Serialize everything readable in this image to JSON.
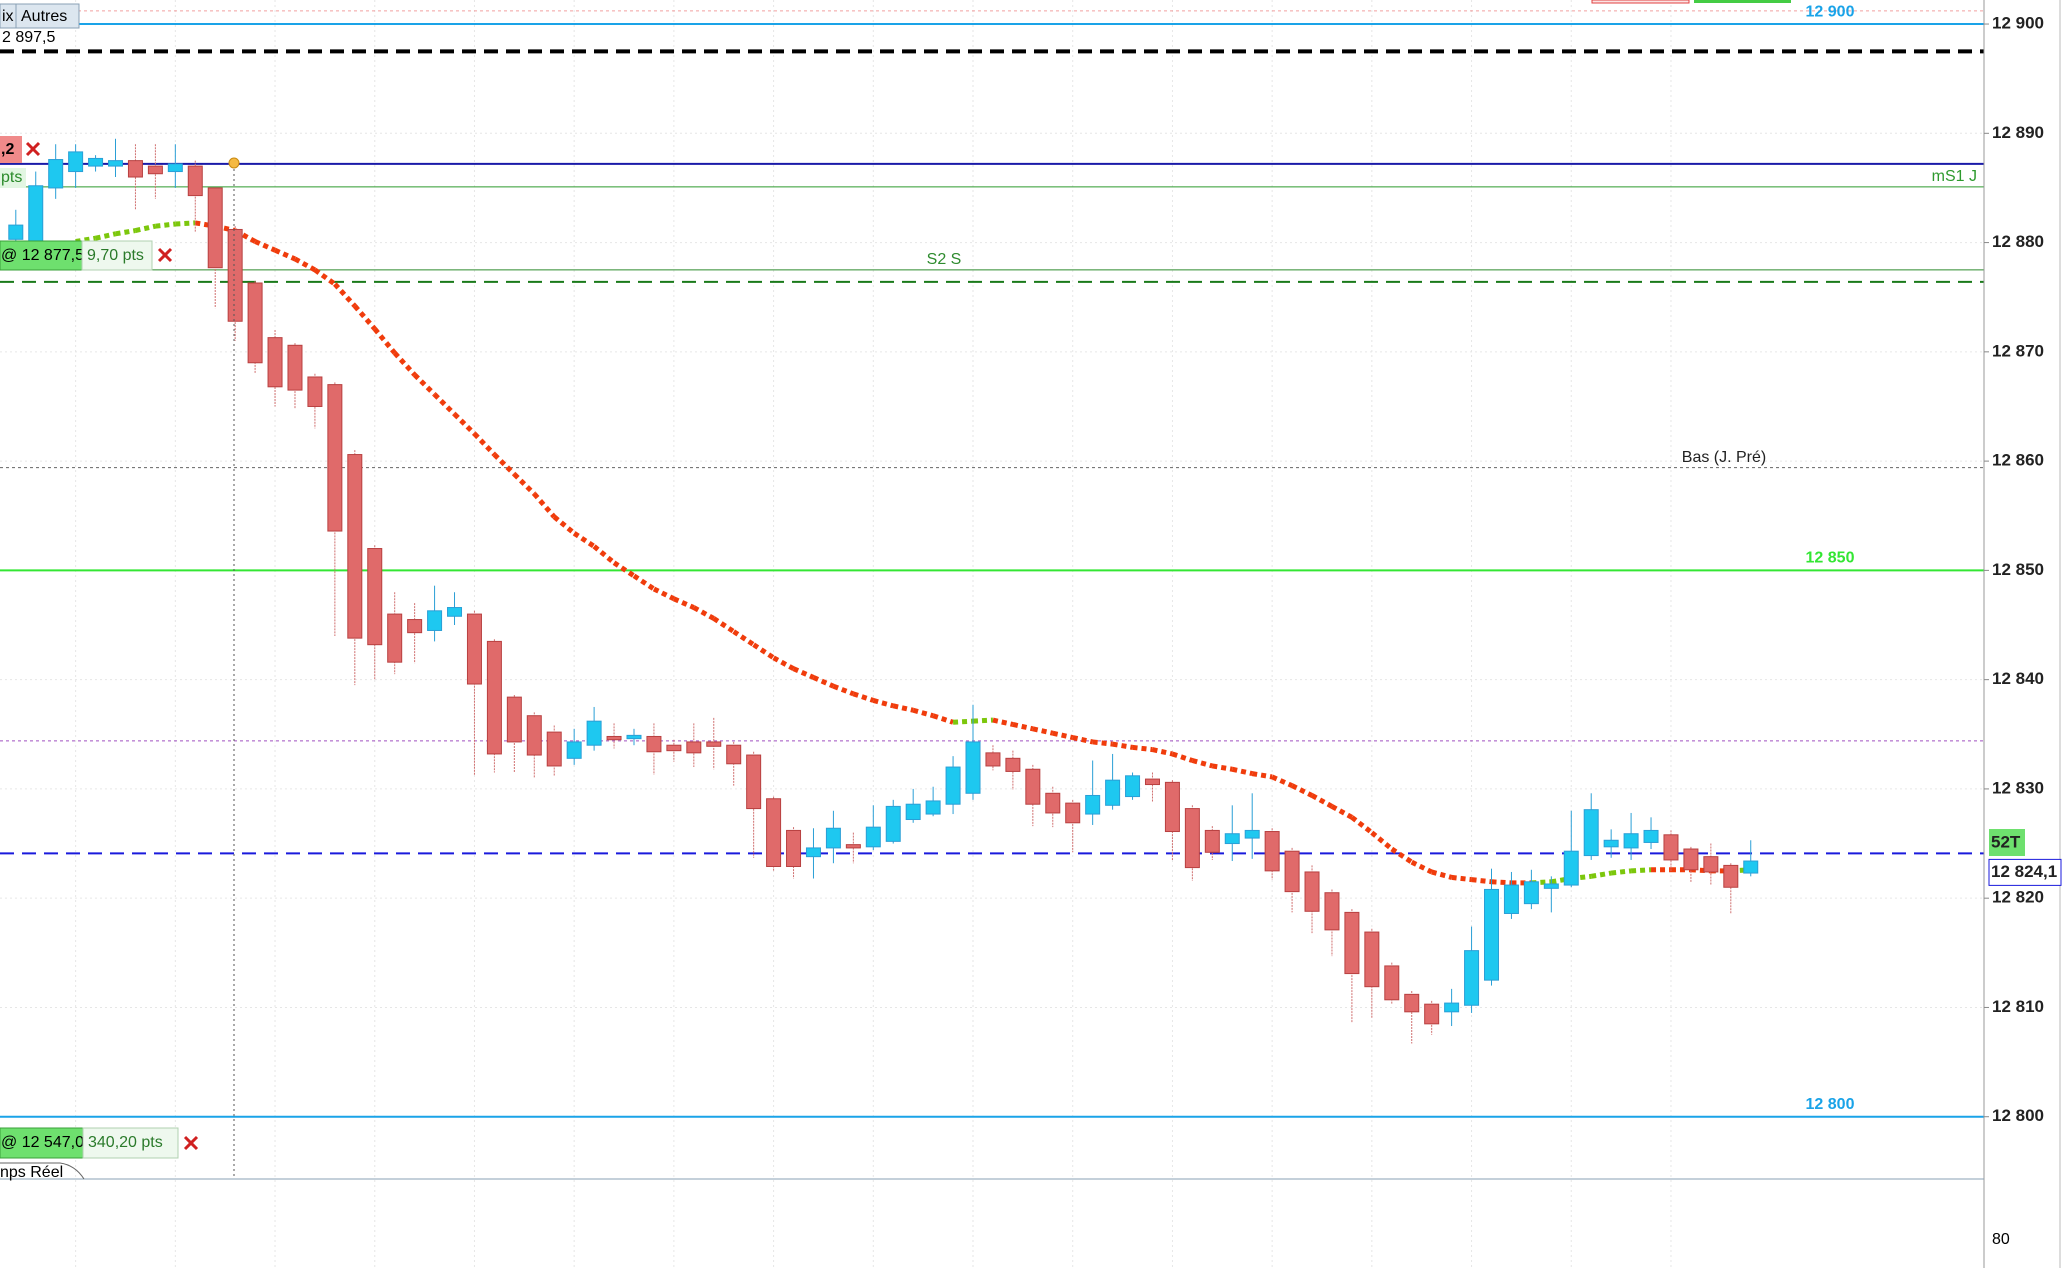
{
  "chart_data": {
    "type": "candlestick",
    "ylim": [
      12794.3,
      12902.2
    ],
    "yticks": [
      {
        "value": 12800,
        "label": "12 800"
      },
      {
        "value": 12810,
        "label": "12 810"
      },
      {
        "value": 12820,
        "label": "12 820"
      },
      {
        "value": 12830,
        "label": "12 830"
      },
      {
        "value": 12840,
        "label": "12 840"
      },
      {
        "value": 12850,
        "label": "12 850"
      },
      {
        "value": 12860,
        "label": "12 860"
      },
      {
        "value": 12870,
        "label": "12 870"
      },
      {
        "value": 12880,
        "label": "12 880"
      },
      {
        "value": 12890,
        "label": "12 890"
      },
      {
        "value": 12900,
        "label": "12 900"
      }
    ],
    "grid": true,
    "up_color": "#1ec8f0",
    "down_color": "#e06a6a",
    "open": [
      12880.3,
      12880,
      12885,
      12886.5,
      12887,
      12887,
      12887.5,
      12887,
      12886.5,
      12887,
      12885,
      12881.2,
      12876.3,
      12871.3,
      12870.6,
      12867.7,
      12867,
      12860.6,
      12852,
      12846,
      12845.5,
      12844.5,
      12845.8,
      12846,
      12843.5,
      12838.4,
      12836.7,
      12835.2,
      12832.8,
      12834,
      12834.8,
      12834.6,
      12834.8,
      12834,
      12834.3,
      12834.3,
      12834,
      12833.1,
      12829.1,
      12826.2,
      12823.8,
      12824.6,
      12824.9,
      12824.7,
      12825.2,
      12827.2,
      12827.7,
      12828.6,
      12829.6,
      12833.3,
      12832.8,
      12831.8,
      12829.6,
      12828.7,
      12827.7,
      12828.5,
      12829.3,
      12830.9,
      12830.6,
      12828.2,
      12826.2,
      12825,
      12825.5,
      12826.1,
      12824.3,
      12822.4,
      12820.5,
      12818.7,
      12816.9,
      12813.8,
      12811.2,
      12810.3,
      12809.6,
      12810.2,
      12812.5,
      12818.6,
      12819.5,
      12820.9,
      12821.2,
      12823.9,
      12824.7,
      12824.6,
      12825.1,
      12825.8,
      12824.5,
      12823.8,
      12823,
      12822.3
    ],
    "high": [
      12883,
      12886.5,
      12889,
      12889,
      12888,
      12889.5,
      12889,
      12889,
      12889,
      12887.5,
      12885,
      12881.5,
      12876.5,
      12872,
      12870.8,
      12868,
      12867.2,
      12861,
      12852.3,
      12848,
      12847,
      12848.6,
      12848,
      12846.3,
      12843.7,
      12838.6,
      12837,
      12835.8,
      12835.5,
      12837.5,
      12836,
      12835.5,
      12836,
      12834.5,
      12836,
      12836.5,
      12834.3,
      12833.4,
      12829.3,
      12826.5,
      12826.4,
      12828,
      12826,
      12828.5,
      12829,
      12830,
      12830.2,
      12833,
      12837.7,
      12834,
      12833.5,
      12832.2,
      12830.2,
      12829,
      12832.6,
      12833.2,
      12831.5,
      12831.5,
      12830.8,
      12828.5,
      12826.6,
      12828.5,
      12829.6,
      12826.4,
      12824.6,
      12823,
      12820.8,
      12819,
      12817.2,
      12814.1,
      12811.5,
      12810.6,
      12811.7,
      12817.4,
      12822.7,
      12822.4,
      12822.6,
      12822,
      12828,
      12829.6,
      12826.3,
      12827.8,
      12827.4,
      12826.2,
      12824.7,
      12825,
      12823.2,
      12825.3
    ],
    "low": [
      12880,
      12879.8,
      12884,
      12885,
      12886.5,
      12886,
      12883,
      12884,
      12885,
      12881,
      12874,
      12871,
      12868,
      12865,
      12864.8,
      12863,
      12844,
      12839.5,
      12840,
      12840.5,
      12841.5,
      12843.5,
      12845,
      12831.2,
      12831.5,
      12831.5,
      12831,
      12831.2,
      12832.2,
      12833.5,
      12833.7,
      12834,
      12831.3,
      12832.5,
      12832,
      12831.8,
      12830.3,
      12823.7,
      12822.5,
      12821.8,
      12821.8,
      12823.2,
      12823.2,
      12824.4,
      12825,
      12826.9,
      12827.5,
      12827.7,
      12829,
      12831.7,
      12829.9,
      12826.6,
      12826.5,
      12824.2,
      12826.7,
      12828.1,
      12829,
      12828.8,
      12823.5,
      12821.6,
      12823.5,
      12823.4,
      12823.6,
      12821.7,
      12818.7,
      12816.8,
      12814.7,
      12808.6,
      12809,
      12810.3,
      12806.7,
      12807.5,
      12808.3,
      12809.5,
      12812,
      12818.1,
      12819,
      12818.7,
      12821,
      12823.5,
      12823.7,
      12823.5,
      12824.5,
      12822.5,
      12821.4,
      12821.2,
      12818.6,
      12822
    ],
    "close": [
      12881.6,
      12885.2,
      12887.6,
      12888.3,
      12887.7,
      12887.5,
      12886,
      12886.3,
      12887.2,
      12884.3,
      12877.7,
      12872.8,
      12869,
      12866.8,
      12866.5,
      12865,
      12853.6,
      12843.8,
      12843.2,
      12841.6,
      12844.3,
      12846.3,
      12846.6,
      12839.6,
      12833.2,
      12834.3,
      12833.1,
      12832.1,
      12834.3,
      12836.2,
      12834.5,
      12834.9,
      12833.4,
      12833.5,
      12833.3,
      12833.9,
      12832.3,
      12828.2,
      12822.9,
      12822.9,
      12824.6,
      12826.4,
      12824.6,
      12826.5,
      12828.4,
      12828.6,
      12828.9,
      12832,
      12834.3,
      12832.1,
      12831.6,
      12828.6,
      12827.8,
      12826.9,
      12829.4,
      12830.8,
      12831.2,
      12830.4,
      12826.1,
      12822.8,
      12824.2,
      12825.9,
      12826.2,
      12822.5,
      12820.6,
      12818.8,
      12817.1,
      12813.1,
      12811.9,
      12810.7,
      12809.6,
      12808.5,
      12810.4,
      12815.2,
      12820.8,
      12821.2,
      12821.5,
      12821.3,
      12824.3,
      12828.1,
      12825.3,
      12825.9,
      12826.2,
      12823.5,
      12822.6,
      12822.4,
      12821,
      12823.4
    ],
    "ma": {
      "up_color": "#7cc70c",
      "down_color": "#f03c0c",
      "values": [
        null,
        null,
        null,
        12880.1,
        12880.4,
        12880.8,
        12881.1,
        12881.5,
        12881.7,
        12881.8,
        12881.5,
        12881.1,
        12880.1,
        12879.3,
        12878.5,
        12877.5,
        12876.2,
        12874.2,
        12872.1,
        12869.9,
        12867.9,
        12866.1,
        12864.3,
        12862.5,
        12860.6,
        12858.8,
        12857,
        12854.9,
        12853.4,
        12852.2,
        12850.7,
        12849.5,
        12848.3,
        12847.4,
        12846.6,
        12845.6,
        12844.4,
        12843.2,
        12842,
        12841,
        12840.2,
        12839.4,
        12838.7,
        12838.1,
        12837.6,
        12837.2,
        12836.7,
        12836.1,
        12836.2,
        12836.3,
        12835.9,
        12835.5,
        12835.1,
        12834.7,
        12834.3,
        12834.1,
        12833.8,
        12833.6,
        12833.2,
        12832.6,
        12832.1,
        12831.8,
        12831.4,
        12831.1,
        12830.3,
        12829.4,
        12828.4,
        12827.4,
        12826,
        12824.5,
        12823.3,
        12822.4,
        12821.9,
        12821.7,
        12821.5,
        12821.4,
        12821.4,
        12821.5,
        12821.8,
        12822,
        12822.3,
        12822.5,
        12822.6,
        12822.6,
        12822.6,
        12822.5,
        12822.5,
        12822.6
      ]
    },
    "levels": [
      {
        "value": 12901.2,
        "color": "#f2a0a0",
        "dash": "dotted",
        "width": 1
      },
      {
        "value": 12900,
        "color": "#1aa3e8",
        "dash": "solid",
        "width": 2,
        "label": "12 900",
        "pos": "right-mid"
      },
      {
        "value": 12897.5,
        "color": "#000000",
        "dash": "dashed",
        "width": 4
      },
      {
        "value": 12887.2,
        "color": "#1a1aa8",
        "dash": "solid",
        "width": 2
      },
      {
        "value": 12885.1,
        "color": "#2e9a2e",
        "dash": "solid",
        "width": 1,
        "label": "mS1 J",
        "pos": "right"
      },
      {
        "value": 12877.5,
        "color": "#2e8b2e",
        "dash": "solid",
        "width": 1,
        "label": "S2 S",
        "pos": "center"
      },
      {
        "value": 12876.4,
        "color": "#1a7a1a",
        "dash": "dashed",
        "width": 2
      },
      {
        "value": 12859.4,
        "color": "#666666",
        "dash": "dotted",
        "width": 1,
        "label": "Bas (J. Pré)",
        "pos": "right-far"
      },
      {
        "value": 12850,
        "color": "#33e633",
        "dash": "solid",
        "width": 2,
        "label": "12 850",
        "pos": "right-mid"
      },
      {
        "value": 12834.4,
        "color": "#a050c0",
        "dash": "dotted",
        "width": 1
      },
      {
        "value": 12824.1,
        "color": "#1a1adc",
        "dash": "dashed",
        "width": 2,
        "label": "12 824,1",
        "pos": "axis-box"
      },
      {
        "value": 12800,
        "color": "#1aa3e8",
        "dash": "solid",
        "width": 2,
        "label": "12 800",
        "pos": "right-mid"
      }
    ]
  },
  "ui": {
    "buttons": [
      "ix",
      "Autres"
    ],
    "top_price": "2 897,5",
    "tag": ",2",
    "tag_pts": "pts",
    "order1": {
      "price": "@ 12 877,5",
      "pts": "9,70 pts"
    },
    "order2": {
      "price": "@ 12 547,0",
      "pts": "340,20 pts"
    },
    "mode": "nps Réel",
    "period": "52T",
    "lower_tick": "80"
  }
}
